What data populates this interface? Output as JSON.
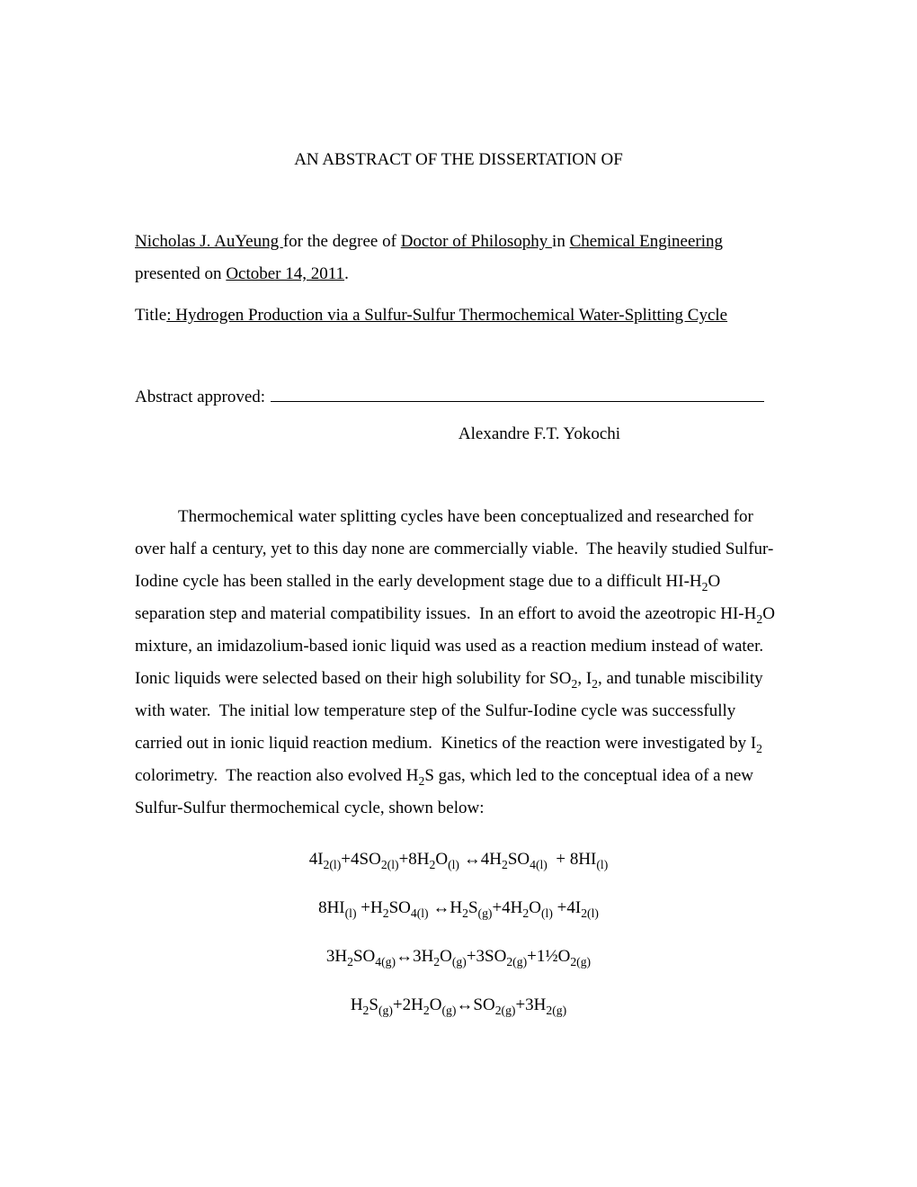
{
  "heading": "AN ABSTRACT OF THE DISSERTATION OF",
  "author": "Nicholas J. AuYeung ",
  "degree_prefix": "for the degree of ",
  "degree": "Doctor of Philosophy ",
  "major_prefix": "in ",
  "major": "Chemical Engineering ",
  "presented_prefix": "presented on ",
  "date": "  October 14, 2011",
  "period": ".",
  "title_label": "Title",
  "title_text": ": Hydrogen Production via a Sulfur-Sulfur Thermochemical Water-Splitting Cycle",
  "approval_label": "Abstract approved: ",
  "approver": "Alexandre F.T. Yokochi",
  "body": "Thermochemical water splitting cycles have been conceptualized and researched for over half a century, yet to this day none are commercially viable.  The heavily studied Sulfur-Iodine cycle has been stalled in the early development stage due to a difficult HI-H₂O separation step and material compatibility issues.  In an effort to avoid the azeotropic HI-H₂O mixture, an imidazolium-based ionic liquid was used as a reaction medium instead of water.  Ionic liquids were selected based on their high solubility for SO₂, I₂, and tunable miscibility with water.  The initial low temperature step of the Sulfur-Iodine cycle was successfully carried out in ionic liquid reaction medium.  Kinetics of the reaction were investigated by I₂ colorimetry.  The reaction also evolved H₂S gas, which led to the conceptual idea of a new Sulfur-Sulfur thermochemical cycle, shown below:",
  "equations": {
    "eq1": "4I₂₍ₗ₎+4SO₂₍ₗ₎+8H₂O₍ₗ₎ ↔4H₂SO₄₍ₗ₎  + 8HI₍ₗ₎",
    "eq2": "8HI₍ₗ₎ +H₂SO₄₍ₗ₎ ↔H₂S₍g₎+4H₂O₍ₗ₎ +4I₂₍ₗ₎",
    "eq3": "3H₂SO₄₍g₎↔3H₂O₍g₎+3SO₂₍g₎+1½O₂₍g₎",
    "eq4": "H₂S₍g₎+2H₂O₍g₎↔SO₂₍g₎+3H₂₍g₎"
  }
}
